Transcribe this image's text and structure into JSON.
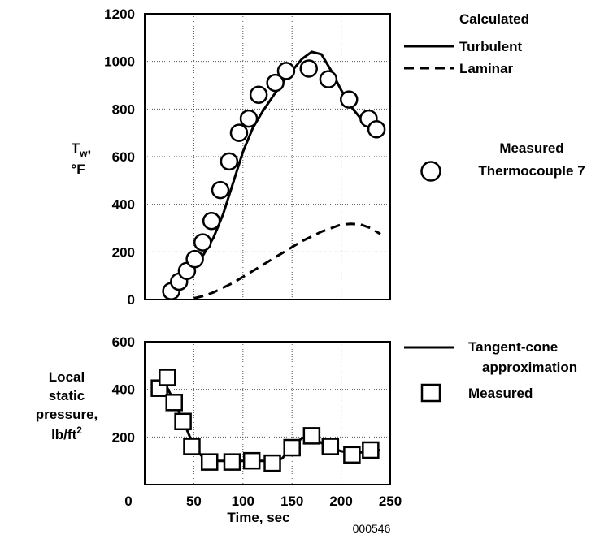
{
  "chart_data": [
    {
      "type": "line",
      "ylabel_main": "T",
      "ylabel_sub": "w",
      "ylabel_comma": ",",
      "ylabel_unit": "°F",
      "xlim": [
        0,
        250
      ],
      "ylim": [
        0,
        1200
      ],
      "yticks": [
        "0",
        "200",
        "400",
        "600",
        "800",
        "1000",
        "1200"
      ],
      "grid": true,
      "legend_title": "Calculated",
      "series": [
        {
          "name": "Turbulent",
          "style": "solid",
          "x": [
            30,
            40,
            50,
            60,
            70,
            80,
            90,
            100,
            110,
            120,
            130,
            140,
            150,
            160,
            170,
            180,
            190,
            200,
            210,
            220,
            230,
            240
          ],
          "y": [
            20,
            70,
            130,
            190,
            260,
            360,
            490,
            620,
            720,
            790,
            850,
            910,
            960,
            1010,
            1040,
            1030,
            960,
            880,
            810,
            760,
            720,
            690
          ]
        },
        {
          "name": "Laminar",
          "style": "dashed",
          "x": [
            50,
            60,
            70,
            80,
            90,
            100,
            110,
            120,
            130,
            140,
            150,
            160,
            170,
            180,
            190,
            200,
            210,
            220,
            230,
            240
          ],
          "y": [
            5,
            15,
            30,
            50,
            70,
            95,
            120,
            145,
            170,
            195,
            220,
            245,
            265,
            285,
            300,
            315,
            318,
            315,
            300,
            275
          ]
        }
      ],
      "measured": {
        "name_line1": "Measured",
        "name_line2": "Thermocouple 7",
        "marker": "circle",
        "x": [
          27,
          35,
          43,
          51,
          59,
          68,
          77,
          86,
          96,
          106,
          116,
          133,
          144,
          167,
          187,
          208,
          228,
          236
        ],
        "y": [
          35,
          75,
          120,
          170,
          240,
          330,
          460,
          580,
          700,
          760,
          860,
          910,
          960,
          970,
          925,
          840,
          760,
          715
        ]
      }
    },
    {
      "type": "line",
      "ylabel_lines": [
        "Local",
        "static",
        "pressure,"
      ],
      "ylabel_last": "lb/ft",
      "ylabel_sup": "2",
      "xlabel": "Time, sec",
      "xlim": [
        0,
        250
      ],
      "ylim": [
        0,
        600
      ],
      "xticks": [
        "0",
        "50",
        "100",
        "150",
        "200",
        "250"
      ],
      "yticks": [
        "200",
        "400",
        "600"
      ],
      "grid": true,
      "series": [
        {
          "name_line1": "Tangent-cone",
          "name_line2": "approximation",
          "style": "solid",
          "x": [
            10,
            20,
            30,
            40,
            50,
            60,
            70,
            80,
            90,
            100,
            110,
            120,
            130,
            140,
            150,
            160,
            170,
            180,
            190,
            200,
            210,
            220,
            230,
            240
          ],
          "y": [
            420,
            430,
            350,
            260,
            160,
            110,
            100,
            100,
            100,
            100,
            100,
            100,
            95,
            110,
            160,
            195,
            200,
            175,
            155,
            140,
            135,
            135,
            140,
            145
          ]
        }
      ],
      "measured": {
        "name": "Measured",
        "marker": "square",
        "x": [
          15,
          23,
          30,
          39,
          48,
          66,
          89,
          109,
          130,
          150,
          170,
          189,
          211,
          230
        ],
        "y": [
          405,
          450,
          345,
          265,
          160,
          95,
          95,
          100,
          90,
          155,
          205,
          160,
          125,
          145
        ]
      }
    }
  ],
  "figure_code": "000546"
}
